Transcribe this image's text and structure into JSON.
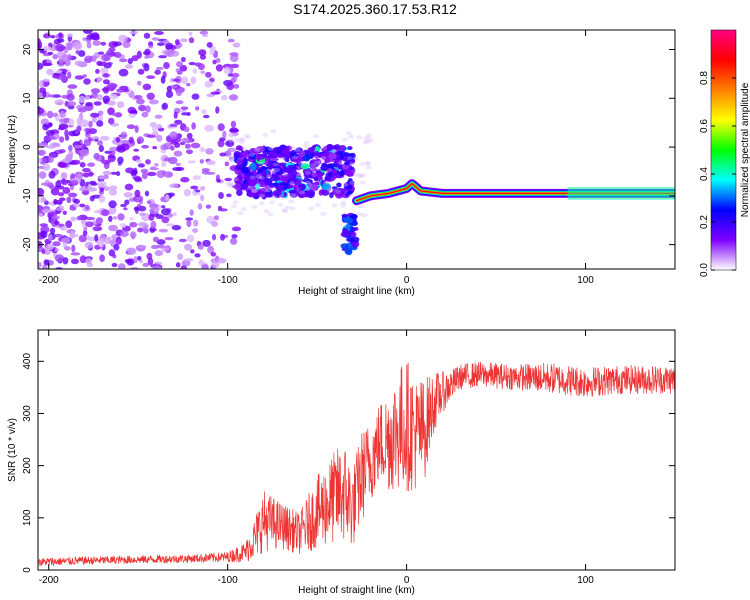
{
  "title": "S174.2025.360.17.53.R12",
  "chart_data": [
    {
      "type": "heatmap",
      "xlabel": "Height of straight line (km)",
      "ylabel": "Frequency (Hz)",
      "xlim": [
        -206,
        150
      ],
      "ylim": [
        -25,
        24
      ],
      "x_ticks": [
        -200,
        -100,
        0,
        100
      ],
      "y_ticks": [
        -20,
        -10,
        0,
        10,
        20
      ],
      "colorbar": {
        "label": "Normalized spectral amplitude",
        "range": [
          0,
          1
        ],
        "ticks": [
          0.0,
          0.2,
          0.4,
          0.6,
          0.8
        ],
        "tick_labels": [
          "0.0",
          "0.2",
          "0.4",
          "0.6",
          "0.8"
        ],
        "colors": [
          "#ffffff",
          "#8000ff",
          "#0000ff",
          "#00ffff",
          "#00ff00",
          "#ffff00",
          "#ff8000",
          "#ff0000",
          "#ff0080"
        ]
      },
      "regions": [
        {
          "description": "scattered noise",
          "x": [
            -206,
            -95
          ],
          "freq": [
            -25,
            24
          ],
          "amplitude": 0.1
        },
        {
          "description": "transition cluster",
          "x": [
            -95,
            -30
          ],
          "freq": [
            -10,
            0
          ],
          "amplitude": 0.25
        },
        {
          "description": "tail",
          "x": [
            -35,
            -28
          ],
          "freq": [
            -22,
            -14
          ],
          "amplitude": 0.3
        },
        {
          "description": "signal track",
          "x": [
            -28,
            150
          ],
          "freq": [
            -10,
            -8
          ],
          "amplitude": 0.9
        }
      ],
      "track": {
        "x": [
          -28,
          -20,
          -10,
          0,
          3,
          8,
          20,
          60,
          100,
          150
        ],
        "freq": [
          -11,
          -10,
          -9.5,
          -8.5,
          -7.5,
          -9,
          -9.5,
          -9.5,
          -9.5,
          -9.5
        ]
      }
    },
    {
      "type": "line",
      "xlabel": "Height of straight line (km)",
      "ylabel": "SNR (10 * v/v)",
      "xlim": [
        -206,
        150
      ],
      "ylim": [
        0,
        460
      ],
      "x_ticks": [
        -200,
        -100,
        0,
        100
      ],
      "y_ticks": [
        0,
        100,
        200,
        300,
        400
      ],
      "color": "#ee3333",
      "x": [
        -206,
        -180,
        -150,
        -120,
        -100,
        -90,
        -85,
        -80,
        -70,
        -60,
        -50,
        -40,
        -35,
        -30,
        -25,
        -20,
        -15,
        -10,
        -5,
        0,
        5,
        10,
        15,
        20,
        25,
        30,
        40,
        60,
        80,
        100,
        120,
        150
      ],
      "y": [
        15,
        18,
        20,
        22,
        25,
        35,
        60,
        95,
        85,
        70,
        110,
        140,
        150,
        120,
        180,
        210,
        245,
        250,
        270,
        280,
        260,
        270,
        320,
        340,
        355,
        370,
        375,
        370,
        368,
        360,
        365,
        365
      ],
      "noise_amplitude": [
        8,
        8,
        8,
        8,
        10,
        20,
        40,
        60,
        45,
        40,
        70,
        90,
        100,
        80,
        90,
        80,
        80,
        100,
        120,
        130,
        110,
        100,
        60,
        40,
        30,
        25,
        25,
        25,
        30,
        30,
        28,
        28
      ]
    }
  ]
}
